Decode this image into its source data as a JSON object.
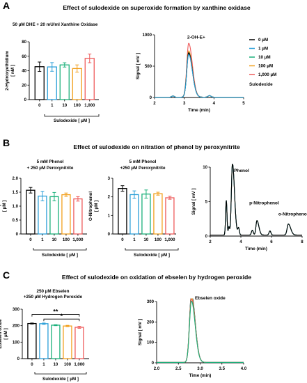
{
  "figure": {
    "panels": [
      {
        "letter": "A",
        "title": "Effect of sulodexide on superoxide formation by xanthine oxidase"
      },
      {
        "letter": "B",
        "title": "Effect of sulodexide on nitration of phenol by peroxynitrite"
      },
      {
        "letter": "C",
        "title": "Effect of sulodexide on oxidation of ebselen by hydrogen peroxide"
      }
    ],
    "legend": {
      "entries": [
        {
          "label": "0 µM",
          "color": "#000000"
        },
        {
          "label": "1 µM",
          "color": "#2b9fd8"
        },
        {
          "label": "10 µM",
          "color": "#1bb07a"
        },
        {
          "label": "100 µM",
          "color": "#f2a01e"
        },
        {
          "label": "1,000 µM",
          "color": "#ee5a5a"
        }
      ],
      "title": "Sulodexide"
    }
  },
  "chart_data": [
    {
      "id": "A-bar",
      "type": "bar",
      "condition": [
        "50 µM DHE + 20 mU/ml Xanthine Oxidase"
      ],
      "categories": [
        "0",
        "1",
        "10",
        "100",
        "1,000"
      ],
      "values": [
        45.5,
        45.2,
        48.0,
        43.0,
        57.0
      ],
      "errors": [
        6.5,
        6.0,
        3.0,
        5.0,
        6.0
      ],
      "colors": [
        "#000000",
        "#2b9fd8",
        "#1bb07a",
        "#f2a01e",
        "#ee5a5a"
      ],
      "xlabel": "Sulodexide [ µM ]",
      "ylabel": "2-Hydroxyethidium\n[ nM ]",
      "ylim": [
        0,
        80
      ],
      "yticks": [
        0,
        20,
        40,
        60,
        80
      ],
      "ytick_labels": [
        "0",
        "20",
        "40",
        "60",
        "80"
      ],
      "significance": []
    },
    {
      "id": "A-trace",
      "type": "line",
      "xlabel": "Time (min)",
      "ylabel": "Signal [ mV ]",
      "xlim": [
        2,
        5
      ],
      "ylim": [
        0,
        1000
      ],
      "xticks": [
        2,
        3,
        4,
        5
      ],
      "xtick_labels": [
        "2",
        "3",
        "4",
        "5"
      ],
      "yticks": [
        0,
        500,
        1000
      ],
      "ytick_labels": [
        "0",
        "500",
        "1000"
      ],
      "baseline": 5,
      "minor_peaks": [
        {
          "x": 2.62,
          "h": 20,
          "w": 0.04
        },
        {
          "x": 3.85,
          "h": 25,
          "w": 0.05
        }
      ],
      "peaks": [
        {
          "label": "2-OH-E+",
          "x": 3.15,
          "w": 0.065,
          "label_x": 3.1,
          "label_y": 940,
          "heights": [
            710,
            680,
            700,
            740,
            860
          ]
        }
      ],
      "series_colors": [
        "#000000",
        "#2b9fd8",
        "#1bb07a",
        "#f2a01e",
        "#ee5a5a"
      ],
      "draw_order": [
        4,
        3,
        2,
        0,
        1
      ]
    },
    {
      "id": "B-bar1",
      "type": "bar",
      "condition": [
        "5 mM Phenol",
        "+ 250 µM Peroxynitrite"
      ],
      "categories": [
        "0",
        "1",
        "10",
        "100",
        "1,000"
      ],
      "values": [
        1.57,
        1.36,
        1.34,
        1.41,
        1.26
      ],
      "errors": [
        0.1,
        0.17,
        0.15,
        0.06,
        0.08
      ],
      "colors": [
        "#000000",
        "#2b9fd8",
        "#1bb07a",
        "#f2a01e",
        "#ee5a5a"
      ],
      "xlabel": "Sulodexide [ µM ]",
      "ylabel": "P-Nitrophenol\n[ µM ]",
      "ylim": [
        0,
        2.0
      ],
      "yticks": [
        0,
        0.5,
        1.0,
        1.5,
        2.0
      ],
      "ytick_labels": [
        "0",
        "0.5",
        "1.0",
        "1.5",
        "2.0"
      ],
      "significance": []
    },
    {
      "id": "B-bar2",
      "type": "bar",
      "condition": [
        "5 mM Phenol",
        "+250 µM Peroxynitrite"
      ],
      "categories": [
        "0",
        "1",
        "10",
        "100",
        "1,000"
      ],
      "values": [
        2.45,
        2.12,
        2.15,
        2.17,
        1.95
      ],
      "errors": [
        0.15,
        0.2,
        0.22,
        0.08,
        0.08
      ],
      "colors": [
        "#000000",
        "#2b9fd8",
        "#1bb07a",
        "#f2a01e",
        "#ee5a5a"
      ],
      "xlabel": "Sulodexide [ µM ]",
      "ylabel": "O-Nitrophenol\n[ µM ]",
      "ylim": [
        0,
        3
      ],
      "yticks": [
        0,
        1,
        2,
        3
      ],
      "ytick_labels": [
        "0",
        "1",
        "2",
        "3"
      ],
      "significance": []
    },
    {
      "id": "B-trace",
      "type": "line",
      "xlabel": "Time (min)",
      "ylabel": "Signal [ mV ]",
      "xlim": [
        2,
        8
      ],
      "ylim": [
        0,
        10
      ],
      "xticks": [
        2,
        4,
        6,
        8
      ],
      "xtick_labels": [
        "2",
        "4",
        "6",
        "8"
      ],
      "yticks": [
        0,
        5,
        10
      ],
      "ytick_labels": [
        "0",
        "5",
        "10"
      ],
      "baseline": 0.15,
      "minor_peaks": [
        {
          "x": 3.05,
          "h": 5.0,
          "w": 0.045
        },
        {
          "x": 3.22,
          "h": 1.2,
          "w": 0.04
        },
        {
          "x": 3.85,
          "h": 1.0,
          "w": 0.05
        },
        {
          "x": 4.75,
          "h": 0.7,
          "w": 0.06
        },
        {
          "x": 5.9,
          "h": 0.6,
          "w": 0.06
        }
      ],
      "peaks": [
        {
          "label": "Phenol",
          "x": 3.45,
          "w": 0.07,
          "label_x": 3.55,
          "label_y": 9.3,
          "heights": [
            10.4,
            10.4,
            10.4,
            10.4,
            10.4
          ]
        },
        {
          "label": "p-Nitrophenol",
          "x": 5.05,
          "w": 0.065,
          "label_x": 4.55,
          "label_y": 4.6,
          "heights": [
            2.1,
            2.1,
            2.1,
            2.1,
            2.1
          ]
        },
        {
          "label": "o-Nitrophenol",
          "x": 7.1,
          "w": 0.08,
          "label_x": 6.45,
          "label_y": 3.0,
          "heights": [
            1.6,
            1.6,
            1.6,
            1.6,
            1.6
          ]
        }
      ],
      "series_colors": [
        "#000000",
        "#2b9fd8",
        "#1bb07a",
        "#f2a01e",
        "#ee5a5a"
      ],
      "draw_order": [
        4,
        3,
        2,
        1,
        0
      ]
    },
    {
      "id": "C-bar",
      "type": "bar",
      "condition": [
        "250 µM Ebselen",
        "+250 µM Hydrogen Peroxide"
      ],
      "categories": [
        "0",
        "1",
        "10",
        "100",
        "1,000"
      ],
      "values": [
        213,
        212,
        203,
        198,
        190
      ],
      "errors": [
        3,
        4,
        3,
        4,
        6
      ],
      "colors": [
        "#000000",
        "#2b9fd8",
        "#1bb07a",
        "#f2a01e",
        "#ee5a5a"
      ],
      "xlabel": "Sulodexide [ µM ]",
      "ylabel": "Ebselen oxide\n[ µM ]",
      "ylim": [
        0,
        300
      ],
      "yticks": [
        0,
        100,
        200,
        300
      ],
      "ytick_labels": [
        "0",
        "100",
        "200",
        "300"
      ],
      "significance": [
        {
          "from": 0,
          "to": 4,
          "label": "**",
          "y": 268
        },
        {
          "from": 1,
          "to": 4,
          "label": "*",
          "y": 240
        }
      ]
    },
    {
      "id": "C-trace",
      "type": "line",
      "xlabel": "Time (min)",
      "ylabel": "Signal [ mV ]",
      "xlim": [
        2.0,
        4.0
      ],
      "ylim": [
        0,
        300
      ],
      "xticks": [
        2.0,
        2.5,
        3.0,
        3.5,
        4.0
      ],
      "xtick_labels": [
        "2.0",
        "2.5",
        "3.0",
        "3.5",
        "4.0"
      ],
      "yticks": [
        0,
        100,
        200,
        300
      ],
      "ytick_labels": [
        "0",
        "100",
        "200",
        "300"
      ],
      "baseline": 2,
      "minor_peaks": [],
      "peaks": [
        {
          "label": "Ebselen oxide",
          "x": 2.8,
          "w": 0.045,
          "label_x": 2.88,
          "label_y": 310,
          "heights": [
            335,
            325,
            300,
            320,
            310
          ]
        }
      ],
      "series_colors": [
        "#000000",
        "#2b9fd8",
        "#1bb07a",
        "#f2a01e",
        "#ee5a5a"
      ],
      "draw_order": [
        0,
        1,
        3,
        4,
        2
      ]
    }
  ]
}
